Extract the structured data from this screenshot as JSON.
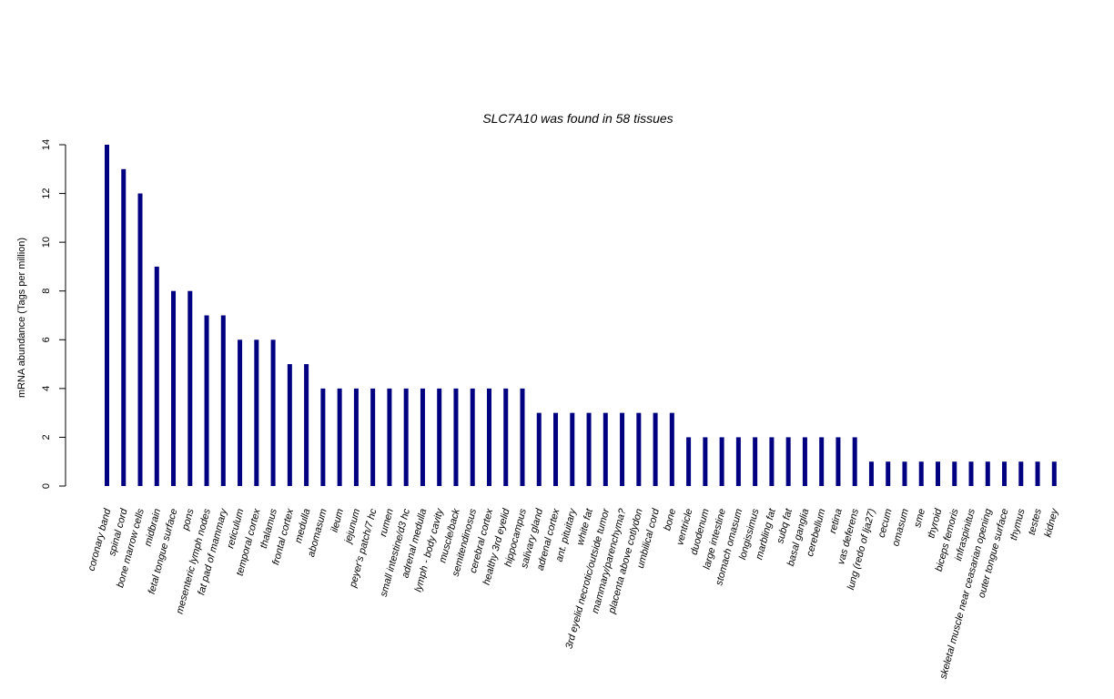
{
  "chart_data": {
    "type": "bar",
    "title": "SLC7A10  was found in  58  tissues",
    "xlabel": "",
    "ylabel": "mRNA abundance (Tags per million)",
    "ylim": [
      0,
      14
    ],
    "yticks": [
      0,
      2,
      4,
      6,
      8,
      10,
      12,
      14
    ],
    "bar_color": "#000080",
    "categories": [
      "coronary band",
      "spinal cord",
      "bone marrow cells",
      "midbrain",
      "fetal tongue surface",
      "pons",
      "mesenteric lymph nodes",
      "fat pad of mammary",
      "reticulum",
      "temporal cortex",
      "thalamus",
      "frontal cortex",
      "medulla",
      "abomasum",
      "ileum",
      "jejunum",
      "peyer's patch/7 hc",
      "rumen",
      "small intestine/d3 hc",
      "adrenal medulla",
      "lymph - body cavity",
      "muscle/back",
      "semitendinosus",
      "cerebral cortex",
      "healthy 3rd eyelid",
      "hippocampus",
      "salivary gland",
      "adrenal cortex",
      "ant. pituitary",
      "white fat",
      "3rd eyelid necrotic/outside tumor",
      "mammary/parenchyma?",
      "placenta above cotlydon",
      "umbilical cord",
      "bone",
      "ventricle",
      "duodenum",
      "large intestine",
      "stomach omasum",
      "longissimus",
      "marbling fat",
      "subq fat",
      "basal ganglia",
      "cerebellum",
      "retina",
      "vas deferens",
      "lung (redo of lja27)",
      "cecum",
      "omasum",
      "sme",
      "thyroid",
      "biceps femoris",
      "infraspinitus",
      "skeletal muscle near ceasarian opening",
      "outer tongue surface",
      "thymus",
      "testes",
      "kidney"
    ],
    "values": [
      14,
      13,
      12,
      9,
      8,
      8,
      7,
      7,
      6,
      6,
      6,
      5,
      5,
      4,
      4,
      4,
      4,
      4,
      4,
      4,
      4,
      4,
      4,
      4,
      4,
      4,
      3,
      3,
      3,
      3,
      3,
      3,
      3,
      3,
      3,
      2,
      2,
      2,
      2,
      2,
      2,
      2,
      2,
      2,
      2,
      2,
      1,
      1,
      1,
      1,
      1,
      1,
      1,
      1,
      1,
      1,
      1,
      1
    ],
    "grid": false,
    "legend": "none"
  }
}
